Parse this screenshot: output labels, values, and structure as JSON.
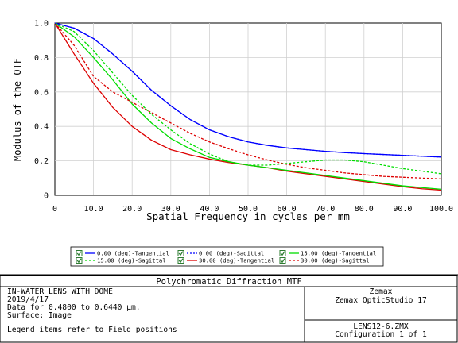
{
  "chart_data": {
    "type": "line",
    "title": "Polychromatic Diffraction MTF",
    "xlabel": "Spatial Frequency in cycles per mm",
    "ylabel": "Modulus of the OTF",
    "xlim": [
      0,
      100
    ],
    "ylim": [
      0,
      1
    ],
    "x_ticks": [
      "0",
      "10.0",
      "20.0",
      "30.0",
      "40.0",
      "50.0",
      "60.0",
      "70.0",
      "80.0",
      "90.0",
      "100.0"
    ],
    "y_ticks": [
      "0",
      "0.2",
      "0.4",
      "0.6",
      "0.8",
      "1.0"
    ],
    "grid": true,
    "legend_position": "bottom",
    "x": [
      0,
      5,
      10,
      15,
      20,
      25,
      30,
      35,
      40,
      45,
      50,
      55,
      60,
      65,
      70,
      75,
      80,
      85,
      90,
      95,
      100
    ],
    "series": [
      {
        "name": "0.00 (deg)-Tangential",
        "color": "#0000ff",
        "dash": "solid",
        "values": [
          1.0,
          0.97,
          0.91,
          0.82,
          0.72,
          0.61,
          0.52,
          0.44,
          0.38,
          0.34,
          0.31,
          0.29,
          0.275,
          0.265,
          0.255,
          0.248,
          0.242,
          0.237,
          0.232,
          0.227,
          0.222
        ]
      },
      {
        "name": "0.00 (deg)-Sagittal",
        "color": "#0000ff",
        "dash": "dotted",
        "values": [
          1.0,
          0.97,
          0.91,
          0.82,
          0.72,
          0.61,
          0.52,
          0.44,
          0.38,
          0.34,
          0.31,
          0.29,
          0.275,
          0.265,
          0.255,
          0.248,
          0.242,
          0.237,
          0.232,
          0.227,
          0.222
        ]
      },
      {
        "name": "15.00 (deg)-Tangential",
        "color": "#00dd00",
        "dash": "solid",
        "values": [
          1.0,
          0.92,
          0.8,
          0.67,
          0.53,
          0.42,
          0.33,
          0.27,
          0.22,
          0.195,
          0.175,
          0.16,
          0.145,
          0.13,
          0.115,
          0.1,
          0.085,
          0.07,
          0.055,
          0.045,
          0.035
        ]
      },
      {
        "name": "15.00 (deg)-Sagittal",
        "color": "#00dd00",
        "dash": "dashed",
        "values": [
          1.0,
          0.95,
          0.84,
          0.71,
          0.58,
          0.47,
          0.38,
          0.3,
          0.24,
          0.195,
          0.175,
          0.175,
          0.185,
          0.195,
          0.205,
          0.205,
          0.195,
          0.175,
          0.155,
          0.14,
          0.125
        ]
      },
      {
        "name": "30.00 (deg)-Tangential",
        "color": "#dd0000",
        "dash": "solid",
        "values": [
          1.0,
          0.82,
          0.65,
          0.51,
          0.4,
          0.32,
          0.265,
          0.235,
          0.21,
          0.19,
          0.175,
          0.16,
          0.14,
          0.125,
          0.11,
          0.095,
          0.08,
          0.065,
          0.05,
          0.038,
          0.03
        ]
      },
      {
        "name": "30.00 (deg)-Sagittal",
        "color": "#dd0000",
        "dash": "dashed",
        "values": [
          1.0,
          0.87,
          0.69,
          0.6,
          0.54,
          0.48,
          0.42,
          0.36,
          0.31,
          0.27,
          0.235,
          0.205,
          0.18,
          0.16,
          0.145,
          0.13,
          0.12,
          0.11,
          0.105,
          0.1,
          0.095
        ]
      }
    ]
  },
  "info": {
    "lines": [
      "IN-WATER LENS WITH DOME",
      "2019/4/17",
      "Data for 0.4800 to 0.6440 µm.",
      "Surface: Image",
      "",
      "Legend items refer to Field positions"
    ],
    "company": "Zemax",
    "product": "Zemax OpticStudio 17",
    "file": "LENS12-6.ZMX",
    "configuration": "Configuration 1 of 1"
  }
}
